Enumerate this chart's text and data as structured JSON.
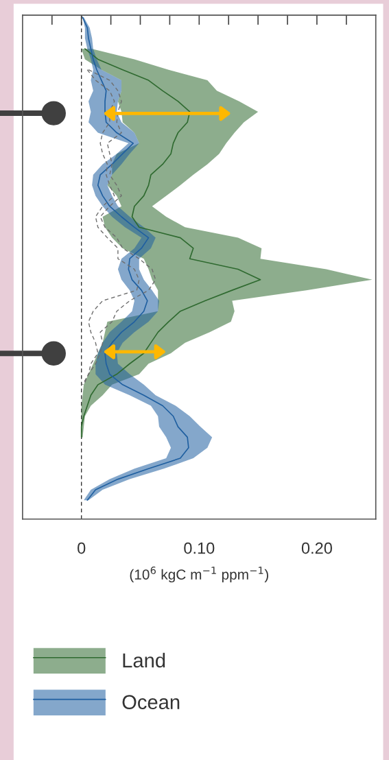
{
  "chart_data": {
    "type": "line",
    "orientation": "horizontal",
    "xlabel": "(10$^{6}$ kgC m$^{−1}$ ppm$^{−1}$)",
    "categories": [
      null,
      null,
      null,
      null,
      null,
      null,
      null,
      null,
      null,
      null,
      null,
      null,
      null,
      null,
      null,
      null,
      null,
      null,
      null,
      null,
      null,
      null,
      null,
      null,
      null,
      null,
      null,
      null,
      null,
      null,
      null,
      null,
      null,
      null,
      null,
      null,
      null,
      null,
      null,
      null,
      null,
      null,
      null,
      null,
      null,
      null,
      null
    ],
    "xlim": [
      -0.05,
      0.25
    ],
    "xticks": [
      {
        "value": -0.025,
        "label": null
      },
      0,
      {
        "value": 0.025,
        "label": null
      },
      {
        "value": 0.05,
        "label": null
      },
      {
        "value": 0.075,
        "label": null
      },
      {
        "value": 0.1,
        "label": "0.10"
      },
      {
        "value": 0.125,
        "label": null
      },
      {
        "value": 0.15,
        "label": null
      },
      {
        "value": 0.175,
        "label": null
      },
      {
        "value": 0.2,
        "label": "0.20"
      },
      {
        "value": 0.225,
        "label": null
      }
    ],
    "tick_labels": "x",
    "grid": false,
    "legend": "bottom",
    "marker": "none",
    "ref_lines": [
      {
        "axis": "x",
        "value": 0,
        "color": "#333333",
        "line_style": "dashed"
      }
    ],
    "series": [
      {
        "name": "Land",
        "color": "#2f6a30",
        "line_style": "solid",
        "values": [
          null,
          null,
          null,
          0.003,
          0.014,
          0.035,
          0.057,
          0.069,
          0.082,
          0.092,
          0.09,
          0.082,
          0.078,
          0.076,
          0.069,
          0.059,
          0.057,
          0.053,
          0.045,
          0.043,
          0.049,
          0.084,
          0.095,
          0.092,
          0.133,
          0.152,
          0.128,
          0.105,
          0.084,
          0.074,
          0.065,
          0.059,
          0.053,
          0.041,
          0.03,
          0.014,
          0.008,
          0.005,
          0.002,
          0.0,
          0.0,
          null,
          null,
          null,
          null,
          null,
          null
        ],
        "lower": [
          null,
          null,
          null,
          0.0,
          0.003,
          0.017,
          0.034,
          0.034,
          0.031,
          0.034,
          0.035,
          0.045,
          0.049,
          0.03,
          0.026,
          0.026,
          0.022,
          0.03,
          0.034,
          0.018,
          0.02,
          0.026,
          0.035,
          0.053,
          0.057,
          0.06,
          0.065,
          0.065,
          0.065,
          0.022,
          0.02,
          0.018,
          0.014,
          0.01,
          0.006,
          0.002,
          0.001,
          0.0,
          0.0,
          0.0,
          0.0,
          null,
          null,
          null,
          null,
          null,
          null
        ],
        "upper": [
          null,
          null,
          null,
          0.009,
          0.045,
          0.074,
          0.107,
          0.115,
          0.134,
          0.15,
          0.138,
          0.13,
          0.123,
          0.117,
          0.107,
          0.095,
          0.084,
          0.072,
          0.06,
          0.072,
          0.088,
          0.133,
          0.153,
          0.152,
          0.208,
          0.247,
          0.191,
          0.128,
          0.13,
          0.127,
          0.109,
          0.088,
          0.076,
          0.057,
          0.049,
          0.026,
          0.018,
          0.008,
          0.003,
          0.002,
          0.001,
          null,
          null,
          null,
          null,
          null,
          null
        ]
      },
      {
        "name": "Ocean",
        "color": "#1f5fa0",
        "line_style": "solid",
        "values": [
          0.001,
          0.005,
          0.006,
          0.008,
          0.01,
          0.013,
          0.017,
          0.021,
          0.02,
          0.02,
          0.021,
          0.03,
          0.044,
          0.035,
          0.026,
          0.016,
          0.014,
          0.018,
          0.024,
          0.034,
          0.045,
          0.057,
          0.051,
          0.041,
          0.04,
          0.043,
          0.051,
          0.056,
          0.053,
          0.045,
          0.034,
          0.026,
          0.02,
          0.021,
          0.024,
          0.035,
          0.053,
          0.069,
          0.078,
          0.082,
          0.09,
          0.091,
          0.084,
          0.057,
          0.031,
          0.012,
          0.005
        ],
        "lower": [
          0.001,
          0.003,
          0.003,
          0.005,
          0.008,
          0.01,
          0.008,
          0.01,
          0.006,
          0.008,
          0.006,
          0.014,
          0.04,
          0.03,
          0.018,
          0.01,
          0.009,
          0.012,
          0.018,
          0.026,
          0.037,
          0.051,
          0.045,
          0.034,
          0.031,
          0.034,
          0.041,
          0.045,
          0.043,
          0.034,
          0.024,
          0.018,
          0.014,
          0.012,
          0.012,
          0.02,
          0.041,
          0.059,
          0.065,
          0.066,
          0.072,
          0.076,
          0.072,
          0.045,
          0.024,
          0.008,
          0.002
        ],
        "upper": [
          0.002,
          0.007,
          0.009,
          0.01,
          0.013,
          0.017,
          0.034,
          0.034,
          0.031,
          0.03,
          0.034,
          0.045,
          0.049,
          0.041,
          0.034,
          0.026,
          0.022,
          0.026,
          0.031,
          0.041,
          0.053,
          0.063,
          0.059,
          0.049,
          0.049,
          0.053,
          0.06,
          0.066,
          0.065,
          0.057,
          0.045,
          0.035,
          0.03,
          0.031,
          0.041,
          0.053,
          0.063,
          0.08,
          0.092,
          0.101,
          0.111,
          0.107,
          0.095,
          0.07,
          0.041,
          0.018,
          0.006
        ]
      },
      {
        "color": "#6e6e6e",
        "line_style": "dashed",
        "values": [
          null,
          null,
          null,
          null,
          null,
          0.005,
          0.012,
          0.024,
          0.028,
          0.024,
          0.024,
          0.018,
          0.016,
          0.018,
          0.022,
          0.021,
          0.024,
          0.028,
          0.018,
          0.012,
          0.014,
          0.022,
          0.031,
          0.031,
          0.045,
          0.049,
          0.047,
          0.018,
          0.01,
          0.006,
          0.008,
          0.012,
          0.014,
          0.008,
          0.006,
          0.002,
          null,
          null,
          null,
          null,
          null,
          null,
          null,
          null,
          null,
          null,
          null
        ]
      },
      {
        "color": "#6e6e6e",
        "line_style": "dashed",
        "values": [
          null,
          null,
          null,
          null,
          null,
          0.006,
          0.024,
          0.031,
          0.034,
          0.031,
          0.03,
          0.034,
          0.022,
          0.024,
          0.026,
          0.024,
          0.03,
          0.034,
          0.024,
          0.016,
          0.02,
          0.03,
          0.035,
          0.049,
          0.06,
          0.063,
          0.057,
          0.041,
          0.03,
          0.026,
          0.016,
          0.018,
          0.016,
          0.012,
          0.006,
          0.001,
          null,
          null,
          null,
          null,
          null,
          null,
          null,
          null,
          null,
          null,
          null
        ]
      }
    ]
  }
}
